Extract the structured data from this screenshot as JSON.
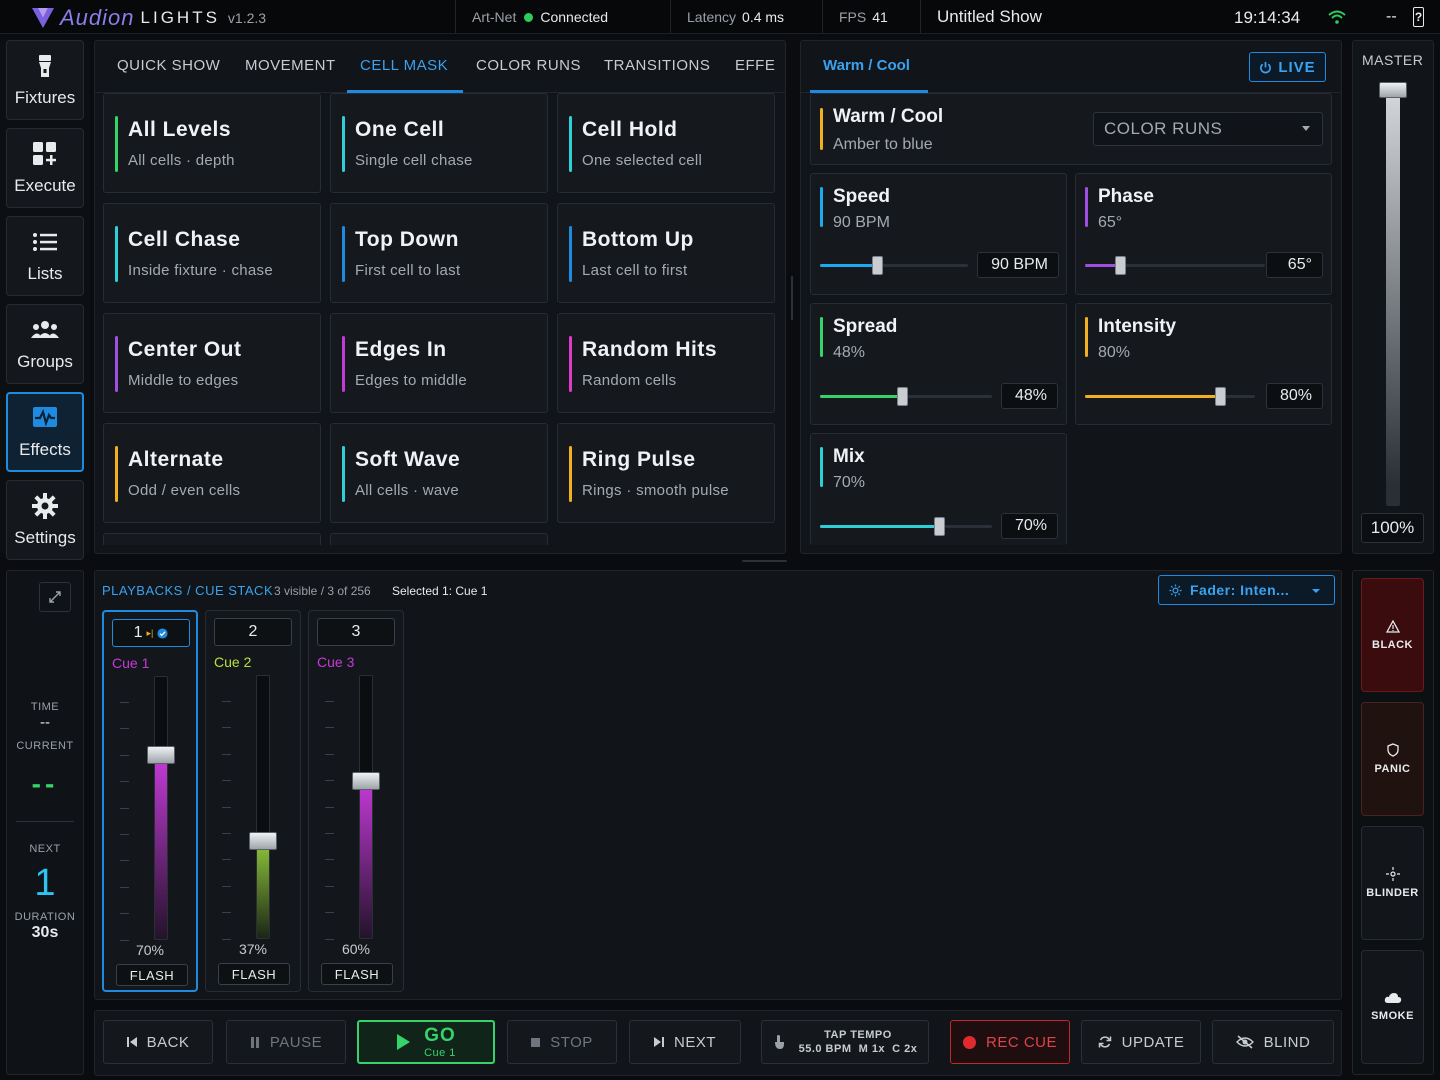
{
  "topbar": {
    "brand": "Audion",
    "brand2": "LIGHTS",
    "version": "v1.2.3",
    "artnet_label": "Art-Net",
    "artnet_status": "Connected",
    "latency_label": "Latency",
    "latency_value": "0.4 ms",
    "fps_label": "FPS",
    "fps_value": "41",
    "show_name": "Untitled Show",
    "clock": "19:14:34",
    "signal": "--",
    "battery": "?"
  },
  "nav": [
    {
      "label": "Fixtures",
      "icon": "flashlight-icon"
    },
    {
      "label": "Execute",
      "icon": "grid-plus-icon"
    },
    {
      "label": "Lists",
      "icon": "list-icon"
    },
    {
      "label": "Groups",
      "icon": "people-icon"
    },
    {
      "label": "Effects",
      "icon": "waveform-icon"
    },
    {
      "label": "Settings",
      "icon": "gear-icon"
    }
  ],
  "effects": {
    "tabs": [
      "QUICK SHOW",
      "MOVEMENT",
      "CELL MASK",
      "COLOR RUNS",
      "TRANSITIONS",
      "EFFE("
    ],
    "active_tab": "CELL MASK",
    "cards": [
      {
        "title": "All Levels",
        "subtitle": "All cells · depth",
        "color": "#35d36a"
      },
      {
        "title": "One Cell",
        "subtitle": "Single cell chase",
        "color": "#2ed0d8"
      },
      {
        "title": "Cell Hold",
        "subtitle": "One selected cell",
        "color": "#2ed0d8"
      },
      {
        "title": "Cell Chase",
        "subtitle": "Inside fixture · chase",
        "color": "#2ed0d8"
      },
      {
        "title": "Top Down",
        "subtitle": "First cell to last",
        "color": "#1e8be0"
      },
      {
        "title": "Bottom Up",
        "subtitle": "Last cell to first",
        "color": "#1e8be0"
      },
      {
        "title": "Center Out",
        "subtitle": "Middle to edges",
        "color": "#a04fe0"
      },
      {
        "title": "Edges In",
        "subtitle": "Edges to middle",
        "color": "#c43ad8"
      },
      {
        "title": "Random Hits",
        "subtitle": "Random cells",
        "color": "#e03ac8"
      },
      {
        "title": "Alternate",
        "subtitle": "Odd / even cells",
        "color": "#f0b020"
      },
      {
        "title": "Soft Wave",
        "subtitle": "All cells · wave",
        "color": "#2ed0d8"
      },
      {
        "title": "Ring Pulse",
        "subtitle": "Rings · smooth pulse",
        "color": "#f0b020"
      }
    ]
  },
  "params": {
    "tab": "Warm / Cool",
    "live_label": "LIVE",
    "effect_name": "Warm / Cool",
    "effect_desc": "Amber to blue",
    "category_select": "COLOR RUNS",
    "items": [
      {
        "name": "Speed",
        "value": "90 BPM",
        "box": "90 BPM",
        "level": 0.39,
        "color": "#1eaaf0"
      },
      {
        "name": "Phase",
        "value": "65°",
        "box": "65°",
        "level": 0.2,
        "color": "#a04fe0"
      },
      {
        "name": "Spread",
        "value": "48%",
        "box": "48%",
        "level": 0.48,
        "color": "#35d36a"
      },
      {
        "name": "Intensity",
        "value": "80%",
        "box": "80%",
        "level": 0.8,
        "color": "#f0b020"
      },
      {
        "name": "Mix",
        "value": "70%",
        "box": "70%",
        "level": 0.7,
        "color": "#2ed0d8"
      }
    ]
  },
  "master": {
    "label": "MASTER",
    "value": "100%",
    "level": 1.0
  },
  "playbacks": {
    "title": "PLAYBACKS / CUE STACK",
    "count": "3 visible / 3 of 256",
    "selected": "Selected 1: Cue 1",
    "fader_select": "Fader: Inten...",
    "cues": [
      {
        "num": "1",
        "name": "Cue 1",
        "pct": "70%",
        "level": 0.7,
        "color": "#c43ad8",
        "flash": "FLASH"
      },
      {
        "num": "2",
        "name": "Cue 2",
        "pct": "37%",
        "level": 0.37,
        "color": "#8ec63a",
        "flash": "FLASH"
      },
      {
        "num": "3",
        "name": "Cue 3",
        "pct": "60%",
        "level": 0.6,
        "color": "#c43ad8",
        "flash": "FLASH"
      }
    ]
  },
  "status": {
    "time_label": "TIME",
    "time_value": "--",
    "current_label": "CURRENT",
    "current_value": "--",
    "next_label": "NEXT",
    "next_value": "1",
    "duration_label": "DURATION",
    "duration_value": "30s"
  },
  "transport": {
    "back": "BACK",
    "pause": "PAUSE",
    "go": "GO",
    "go_sub": "Cue 1",
    "stop": "STOP",
    "next": "NEXT",
    "tap_label": "TAP TEMPO",
    "tap_value": "55.0 BPM  M 1x  C 2x",
    "rec": "REC CUE",
    "update": "UPDATE",
    "blind": "BLIND"
  },
  "actions": {
    "black": "BLACK",
    "panic": "PANIC",
    "blinder": "BLINDER",
    "smoke": "SMOKE"
  }
}
